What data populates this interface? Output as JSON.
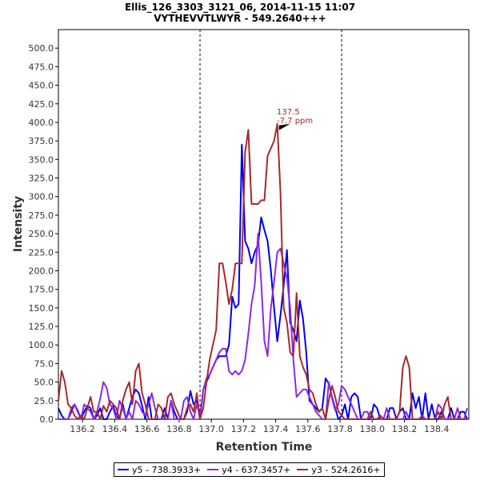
{
  "chart_data": {
    "type": "line",
    "title": "Ellis_126_3303_3121_06, 2014-11-15 11:07",
    "subtitle": "VYTHEVVTLWYR - 549.2640+++",
    "xlabel": "Retention Time",
    "ylabel": "Intensity",
    "xlim": [
      136.05,
      138.6
    ],
    "ylim": [
      0,
      525
    ],
    "x_ticks": [
      "136.2",
      "136.4",
      "136.6",
      "136.8",
      "137.0",
      "137.2",
      "137.4",
      "137.6",
      "137.8",
      "138.0",
      "138.2",
      "138.4"
    ],
    "y_ticks": [
      "0.0",
      "25.0",
      "50.0",
      "75.0",
      "100.0",
      "125.0",
      "150.0",
      "175.0",
      "200.0",
      "225.0",
      "250.0",
      "275.0",
      "300.0",
      "325.0",
      "350.0",
      "375.0",
      "400.0",
      "425.0",
      "450.0",
      "475.0",
      "500.0"
    ],
    "vlines": [
      136.93,
      137.81
    ],
    "annotation": {
      "x": 137.5,
      "y": 398,
      "line1": "137.5",
      "line2": "-7.7 ppm",
      "color": "#a52a2a"
    },
    "grid": false,
    "legend_position": "bottom",
    "x": [
      136.05,
      136.07,
      136.09,
      136.11,
      136.13,
      136.15,
      136.17,
      136.19,
      136.21,
      136.23,
      136.25,
      136.27,
      136.29,
      136.31,
      136.33,
      136.35,
      136.37,
      136.39,
      136.41,
      136.43,
      136.45,
      136.47,
      136.49,
      136.51,
      136.53,
      136.55,
      136.57,
      136.59,
      136.61,
      136.63,
      136.65,
      136.67,
      136.69,
      136.71,
      136.73,
      136.75,
      136.77,
      136.79,
      136.81,
      136.83,
      136.85,
      136.87,
      136.89,
      136.91,
      136.93,
      136.95,
      136.97,
      136.99,
      137.01,
      137.03,
      137.05,
      137.07,
      137.09,
      137.11,
      137.13,
      137.15,
      137.17,
      137.19,
      137.21,
      137.23,
      137.25,
      137.27,
      137.29,
      137.31,
      137.33,
      137.35,
      137.37,
      137.39,
      137.41,
      137.43,
      137.45,
      137.47,
      137.49,
      137.51,
      137.53,
      137.55,
      137.57,
      137.59,
      137.61,
      137.63,
      137.65,
      137.67,
      137.69,
      137.71,
      137.73,
      137.75,
      137.77,
      137.79,
      137.81,
      137.83,
      137.85,
      137.87,
      137.89,
      137.91,
      137.93,
      137.95,
      137.97,
      137.99,
      138.01,
      138.03,
      138.05,
      138.07,
      138.09,
      138.11,
      138.13,
      138.15,
      138.17,
      138.19,
      138.21,
      138.23,
      138.25,
      138.27,
      138.29,
      138.31,
      138.33,
      138.35,
      138.37,
      138.39,
      138.41,
      138.43,
      138.45,
      138.47,
      138.49,
      138.51,
      138.53,
      138.55,
      138.57,
      138.59
    ],
    "series": [
      {
        "name": "y5 - 738.3933+",
        "color": "#0000ee",
        "values": [
          15,
          5,
          0,
          0,
          10,
          20,
          12,
          0,
          10,
          18,
          15,
          0,
          5,
          15,
          0,
          0,
          10,
          18,
          5,
          0,
          20,
          0,
          15,
          30,
          40,
          35,
          18,
          0,
          30,
          0,
          0,
          0,
          0,
          15,
          0,
          25,
          10,
          0,
          0,
          0,
          10,
          38,
          20,
          25,
          0,
          40,
          50,
          60,
          70,
          80,
          85,
          85,
          85,
          100,
          165,
          150,
          155,
          370,
          240,
          230,
          210,
          225,
          235,
          272,
          255,
          240,
          200,
          150,
          105,
          140,
          180,
          228,
          130,
          120,
          105,
          160,
          135,
          90,
          25,
          20,
          15,
          10,
          15,
          55,
          48,
          30,
          15,
          0,
          5,
          20,
          0,
          30,
          35,
          30,
          0,
          0,
          0,
          0,
          20,
          15,
          0,
          0,
          0,
          15,
          15,
          0,
          10,
          15,
          0,
          0,
          35,
          15,
          30,
          0,
          35,
          0,
          20,
          0,
          0,
          10,
          0,
          0,
          15,
          0,
          0,
          10,
          10,
          0
        ]
      },
      {
        "name": "y4 - 637.3457+",
        "color": "#8a2be2",
        "values": [
          0,
          0,
          0,
          0,
          15,
          20,
          10,
          0,
          20,
          15,
          10,
          0,
          10,
          28,
          50,
          42,
          20,
          15,
          0,
          25,
          15,
          0,
          10,
          0,
          25,
          20,
          10,
          5,
          20,
          35,
          15,
          0,
          0,
          0,
          0,
          25,
          0,
          0,
          0,
          25,
          30,
          10,
          0,
          20,
          5,
          40,
          55,
          60,
          70,
          80,
          90,
          95,
          95,
          65,
          60,
          65,
          60,
          65,
          80,
          115,
          155,
          180,
          250,
          185,
          105,
          85,
          150,
          185,
          225,
          230,
          210,
          190,
          150,
          80,
          30,
          35,
          40,
          40,
          30,
          20,
          10,
          5,
          0,
          0,
          50,
          28,
          12,
          20,
          45,
          40,
          30,
          20,
          10,
          0,
          0,
          10,
          10,
          0,
          0,
          0,
          0,
          0,
          15,
          0,
          0,
          0,
          0,
          0,
          10,
          0,
          0,
          0,
          0,
          5,
          0,
          0,
          0,
          0,
          20,
          15,
          0,
          0,
          0,
          0,
          15,
          0,
          0,
          15
        ]
      },
      {
        "name": "y3 - 524.2616+",
        "color": "#a52a2a",
        "values": [
          25,
          65,
          50,
          20,
          15,
          5,
          0,
          5,
          0,
          15,
          30,
          10,
          10,
          0,
          18,
          10,
          25,
          20,
          15,
          0,
          25,
          40,
          50,
          20,
          65,
          75,
          35,
          20,
          0,
          0,
          0,
          20,
          15,
          0,
          30,
          35,
          20,
          10,
          0,
          0,
          15,
          20,
          10,
          35,
          0,
          15,
          50,
          80,
          100,
          120,
          210,
          210,
          185,
          155,
          175,
          210,
          210,
          210,
          360,
          390,
          290,
          290,
          290,
          295,
          295,
          355,
          365,
          375,
          398,
          305,
          150,
          130,
          90,
          85,
          170,
          85,
          70,
          60,
          40,
          35,
          20,
          10,
          15,
          0,
          25,
          45,
          30,
          10,
          5,
          0,
          0,
          0,
          0,
          0,
          0,
          0,
          0,
          10,
          0,
          0,
          5,
          0,
          0,
          0,
          0,
          0,
          10,
          70,
          85,
          70,
          0,
          0,
          0,
          0,
          0,
          0,
          0,
          0,
          10,
          0,
          20,
          30,
          0,
          0,
          0,
          0,
          0,
          0
        ]
      }
    ]
  }
}
